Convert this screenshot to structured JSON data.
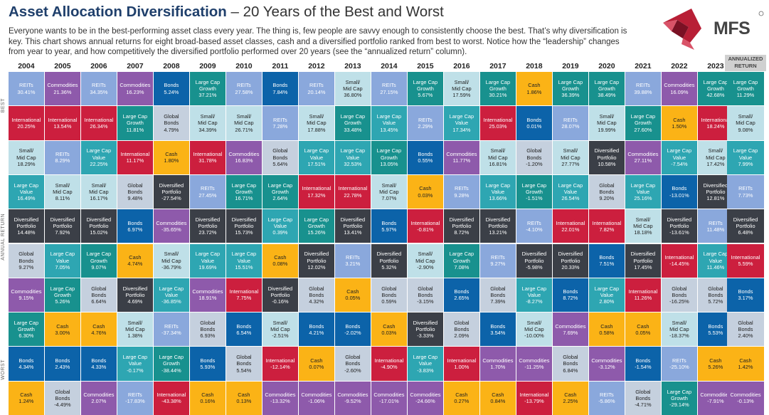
{
  "header": {
    "title_bold": "Asset Allocation Diversification",
    "title_rest": " – 20 Years of the Best and Worst",
    "description": "Everyone wants to be in the best-performing asset class every year. The thing is, few people are savvy enough to consistently choose the best. That’s why diversification is key. This chart shows annual returns for eight broad-based asset classes, cash and a diversified portfolio ranked from best to worst. Notice how the “leadership” changes from year to year, and how competitively the diversified portfolio performed over 20 years (see the “annualized return” column).",
    "logo_text": "MFS",
    "annualized_label": "ANNUALIZED RETURN",
    "axis_best": "BEST",
    "axis_annual": "ANNUAL RETURN",
    "axis_worst": "WORST"
  },
  "colors": {
    "REITs": "#8aa8dc",
    "Commodities": "#8e5aab",
    "International": "#cc1f3e",
    "Small/ Mid Cap": "#bfe0e8",
    "Large Cap Value": "#2ea6b2",
    "Large Cap Growth": "#18918e",
    "Diversified Portfolio": "#3b3f47",
    "Global Bonds": "#c5d0de",
    "Bonds": "#0c63a9",
    "Cash": "#fbb316"
  },
  "chart_data": {
    "type": "table",
    "title": "Asset Allocation Diversification – 20 Years of the Best and Worst",
    "years": [
      "2004",
      "2005",
      "2006",
      "2007",
      "2008",
      "2009",
      "2010",
      "2011",
      "2012",
      "2013",
      "2014",
      "2015",
      "2016",
      "2017",
      "2018",
      "2019",
      "2020",
      "2021",
      "2022",
      "2023"
    ],
    "columns": [
      [
        [
          "REITs",
          "30.41%"
        ],
        [
          "International",
          "20.25%"
        ],
        [
          "Small/ Mid Cap",
          "18.29%"
        ],
        [
          "Large Cap Value",
          "16.49%"
        ],
        [
          "Diversified Portfolio",
          "14.48%"
        ],
        [
          "Global Bonds",
          "9.27%"
        ],
        [
          "Commodities",
          "9.15%"
        ],
        [
          "Large Cap Growth",
          "6.30%"
        ],
        [
          "Bonds",
          "4.34%"
        ],
        [
          "Cash",
          "1.24%"
        ]
      ],
      [
        [
          "Commodities",
          "21.36%"
        ],
        [
          "International",
          "13.54%"
        ],
        [
          "REITs",
          "8.29%"
        ],
        [
          "Small/ Mid Cap",
          "8.11%"
        ],
        [
          "Diversified Portfolio",
          "7.92%"
        ],
        [
          "Large Cap Value",
          "7.05%"
        ],
        [
          "Large Cap Growth",
          "5.26%"
        ],
        [
          "Cash",
          "3.00%"
        ],
        [
          "Bonds",
          "2.43%"
        ],
        [
          "Global Bonds",
          "-4.49%"
        ]
      ],
      [
        [
          "REITs",
          "34.35%"
        ],
        [
          "International",
          "26.34%"
        ],
        [
          "Large Cap Value",
          "22.25%"
        ],
        [
          "Small/ Mid Cap",
          "16.17%"
        ],
        [
          "Diversified Portfolio",
          "15.02%"
        ],
        [
          "Large Cap Growth",
          "9.07%"
        ],
        [
          "Global Bonds",
          "6.64%"
        ],
        [
          "Cash",
          "4.76%"
        ],
        [
          "Bonds",
          "4.33%"
        ],
        [
          "Commodities",
          "2.07%"
        ]
      ],
      [
        [
          "Commodities",
          "16.23%"
        ],
        [
          "Large Cap Growth",
          "11.81%"
        ],
        [
          "International",
          "11.17%"
        ],
        [
          "Global Bonds",
          "9.48%"
        ],
        [
          "Bonds",
          "6.97%"
        ],
        [
          "Cash",
          "4.74%"
        ],
        [
          "Diversified Portfolio",
          "4.69%"
        ],
        [
          "Small/ Mid Cap",
          "1.38%"
        ],
        [
          "Large Cap Value",
          "-0.17%"
        ],
        [
          "REITs",
          "-17.83%"
        ]
      ],
      [
        [
          "Bonds",
          "5.24%"
        ],
        [
          "Global Bonds",
          "4.79%"
        ],
        [
          "Cash",
          "1.80%"
        ],
        [
          "Diversified Portfolio",
          "-27.54%"
        ],
        [
          "Commodities",
          "-35.65%"
        ],
        [
          "Small/ Mid Cap",
          "-36.79%"
        ],
        [
          "Large Cap Value",
          "-36.85%"
        ],
        [
          "REITs",
          "-37.34%"
        ],
        [
          "Large Cap Growth",
          "-38.44%"
        ],
        [
          "International",
          "-43.38%"
        ]
      ],
      [
        [
          "Large Cap Growth",
          "37.21%"
        ],
        [
          "Small/ Mid Cap",
          "34.39%"
        ],
        [
          "International",
          "31.78%"
        ],
        [
          "REITs",
          "27.45%"
        ],
        [
          "Diversified Portfolio",
          "23.72%"
        ],
        [
          "Large Cap Value",
          "19.69%"
        ],
        [
          "Commodities",
          "18.91%"
        ],
        [
          "Global Bonds",
          "6.93%"
        ],
        [
          "Bonds",
          "5.93%"
        ],
        [
          "Cash",
          "0.16%"
        ]
      ],
      [
        [
          "REITs",
          "27.58%"
        ],
        [
          "Small/ Mid Cap",
          "26.71%"
        ],
        [
          "Commodities",
          "16.83%"
        ],
        [
          "Large Cap Growth",
          "16.71%"
        ],
        [
          "Diversified Portfolio",
          "15.73%"
        ],
        [
          "Large Cap Value",
          "15.51%"
        ],
        [
          "International",
          "7.75%"
        ],
        [
          "Bonds",
          "6.54%"
        ],
        [
          "Global Bonds",
          "5.54%"
        ],
        [
          "Cash",
          "0.13%"
        ]
      ],
      [
        [
          "Bonds",
          "7.84%"
        ],
        [
          "REITs",
          "7.28%"
        ],
        [
          "Global Bonds",
          "5.64%"
        ],
        [
          "Large Cap Growth",
          "2.64%"
        ],
        [
          "Large Cap Value",
          "0.39%"
        ],
        [
          "Cash",
          "0.08%"
        ],
        [
          "Diversified Portfolio",
          "-0.16%"
        ],
        [
          "Small/ Mid Cap",
          "-2.51%"
        ],
        [
          "International",
          "-12.14%"
        ],
        [
          "Commodities",
          "-13.32%"
        ]
      ],
      [
        [
          "REITs",
          "20.14%"
        ],
        [
          "Small/ Mid Cap",
          "17.88%"
        ],
        [
          "Large Cap Value",
          "17.51%"
        ],
        [
          "International",
          "17.32%"
        ],
        [
          "Large Cap Growth",
          "15.26%"
        ],
        [
          "Diversified Portfolio",
          "12.02%"
        ],
        [
          "Global Bonds",
          "4.32%"
        ],
        [
          "Bonds",
          "4.21%"
        ],
        [
          "Cash",
          "0.07%"
        ],
        [
          "Commodities",
          "-1.06%"
        ]
      ],
      [
        [
          "Small/ Mid Cap",
          "36.80%"
        ],
        [
          "Large Cap Growth",
          "33.48%"
        ],
        [
          "Large Cap Value",
          "32.53%"
        ],
        [
          "International",
          "22.78%"
        ],
        [
          "Diversified Portfolio",
          "13.41%"
        ],
        [
          "REITs",
          "3.21%"
        ],
        [
          "Cash",
          "0.05%"
        ],
        [
          "Bonds",
          "-2.02%"
        ],
        [
          "Global Bonds",
          "-2.60%"
        ],
        [
          "Commodities",
          "-9.52%"
        ]
      ],
      [
        [
          "REITs",
          "27.15%"
        ],
        [
          "Large Cap Value",
          "13.45%"
        ],
        [
          "Large Cap Growth",
          "13.05%"
        ],
        [
          "Small/ Mid Cap",
          "7.07%"
        ],
        [
          "Bonds",
          "5.97%"
        ],
        [
          "Diversified Portfolio",
          "5.32%"
        ],
        [
          "Global Bonds",
          "0.59%"
        ],
        [
          "Cash",
          "0.03%"
        ],
        [
          "International",
          "-4.90%"
        ],
        [
          "Commodities",
          "-17.01%"
        ]
      ],
      [
        [
          "Large Cap Growth",
          "5.67%"
        ],
        [
          "REITs",
          "2.29%"
        ],
        [
          "Bonds",
          "0.55%"
        ],
        [
          "Cash",
          "0.03%"
        ],
        [
          "International",
          "-0.81%"
        ],
        [
          "Small/ Mid Cap",
          "-2.90%"
        ],
        [
          "Global Bonds",
          "-3.15%"
        ],
        [
          "Diversified Portfolio",
          "-3.33%"
        ],
        [
          "Large Cap Value",
          "-3.83%"
        ],
        [
          "Commodities",
          "-24.66%"
        ]
      ],
      [
        [
          "Small/ Mid Cap",
          "17.59%"
        ],
        [
          "Large Cap Value",
          "17.34%"
        ],
        [
          "Commodities",
          "11.77%"
        ],
        [
          "REITs",
          "9.28%"
        ],
        [
          "Diversified Portfolio",
          "8.72%"
        ],
        [
          "Large Cap Growth",
          "7.08%"
        ],
        [
          "Bonds",
          "2.65%"
        ],
        [
          "Global Bonds",
          "2.09%"
        ],
        [
          "International",
          "1.00%"
        ],
        [
          "Cash",
          "0.27%"
        ]
      ],
      [
        [
          "Large Cap Growth",
          "30.21%"
        ],
        [
          "International",
          "25.03%"
        ],
        [
          "Small/ Mid Cap",
          "16.81%"
        ],
        [
          "Large Cap Value",
          "13.66%"
        ],
        [
          "Diversified Portfolio",
          "13.21%"
        ],
        [
          "REITs",
          "9.27%"
        ],
        [
          "Global Bonds",
          "7.39%"
        ],
        [
          "Bonds",
          "3.54%"
        ],
        [
          "Commodities",
          "1.70%"
        ],
        [
          "Cash",
          "0.84%"
        ]
      ],
      [
        [
          "Cash",
          "1.86%"
        ],
        [
          "Bonds",
          "0.01%"
        ],
        [
          "Global Bonds",
          "-1.20%"
        ],
        [
          "Large Cap Growth",
          "-1.51%"
        ],
        [
          "REITs",
          "-4.10%"
        ],
        [
          "Diversified Portfolio",
          "-5.98%"
        ],
        [
          "Large Cap Value",
          "-8.27%"
        ],
        [
          "Small/ Mid Cap",
          "-10.00%"
        ],
        [
          "Commodities",
          "-11.25%"
        ],
        [
          "International",
          "-13.79%"
        ]
      ],
      [
        [
          "Large Cap Growth",
          "36.39%"
        ],
        [
          "REITs",
          "28.07%"
        ],
        [
          "Small/ Mid Cap",
          "27.77%"
        ],
        [
          "Large Cap Value",
          "26.54%"
        ],
        [
          "International",
          "22.01%"
        ],
        [
          "Diversified Portfolio",
          "20.33%"
        ],
        [
          "Bonds",
          "8.72%"
        ],
        [
          "Commodities",
          "7.69%"
        ],
        [
          "Global Bonds",
          "6.84%"
        ],
        [
          "Cash",
          "2.25%"
        ]
      ],
      [
        [
          "Large Cap Growth",
          "38.49%"
        ],
        [
          "Small/ Mid Cap",
          "19.99%"
        ],
        [
          "Diversified Portfolio",
          "10.58%"
        ],
        [
          "Global Bonds",
          "9.20%"
        ],
        [
          "International",
          "7.82%"
        ],
        [
          "Bonds",
          "7.51%"
        ],
        [
          "Large Cap Value",
          "2.80%"
        ],
        [
          "Cash",
          "0.58%"
        ],
        [
          "Commodities",
          "-3.12%"
        ],
        [
          "REITs",
          "-5.86%"
        ]
      ],
      [
        [
          "REITs",
          "39.88%"
        ],
        [
          "Large Cap Growth",
          "27.60%"
        ],
        [
          "Commodities",
          "27.11%"
        ],
        [
          "Large Cap Value",
          "25.16%"
        ],
        [
          "Small/ Mid Cap",
          "18.18%"
        ],
        [
          "Diversified Portfolio",
          "17.45%"
        ],
        [
          "International",
          "11.26%"
        ],
        [
          "Cash",
          "0.05%"
        ],
        [
          "Bonds",
          "-1.54%"
        ],
        [
          "Global Bonds",
          "-4.71%"
        ]
      ],
      [
        [
          "Commodities",
          "16.09%"
        ],
        [
          "Cash",
          "1.50%"
        ],
        [
          "Large Cap Value",
          "-7.54%"
        ],
        [
          "Bonds",
          "-13.01%"
        ],
        [
          "Diversified Portfolio",
          "-13.61%"
        ],
        [
          "International",
          "-14.45%"
        ],
        [
          "Global Bonds",
          "-16.25%"
        ],
        [
          "Small/ Mid Cap",
          "-18.37%"
        ],
        [
          "REITs",
          "-25.10%"
        ],
        [
          "Large Cap Growth",
          "-29.14%"
        ]
      ],
      [
        [
          "Large Cap Growth",
          "42.68%"
        ],
        [
          "International",
          "18.24%"
        ],
        [
          "Small/ Mid Cap",
          "17.42%"
        ],
        [
          "Diversified Portfolio",
          "12.81%"
        ],
        [
          "REITs",
          "11.48%"
        ],
        [
          "Large Cap Value",
          "11.46%"
        ],
        [
          "Global Bonds",
          "5.72%"
        ],
        [
          "Bonds",
          "5.53%"
        ],
        [
          "Cash",
          "5.26%"
        ],
        [
          "Commodities",
          "-7.91%"
        ]
      ]
    ],
    "annualized": [
      [
        "Large Cap Growth",
        "11.29%"
      ],
      [
        "Small/ Mid Cap",
        "9.08%"
      ],
      [
        "Large Cap Value",
        "7.99%"
      ],
      [
        "REITs",
        "7.73%"
      ],
      [
        "Diversified Portfolio",
        "6.48%"
      ],
      [
        "International",
        "5.59%"
      ],
      [
        "Bonds",
        "3.17%"
      ],
      [
        "Global Bonds",
        "2.40%"
      ],
      [
        "Cash",
        "1.42%"
      ],
      [
        "Commodities",
        "-0.13%"
      ]
    ]
  }
}
